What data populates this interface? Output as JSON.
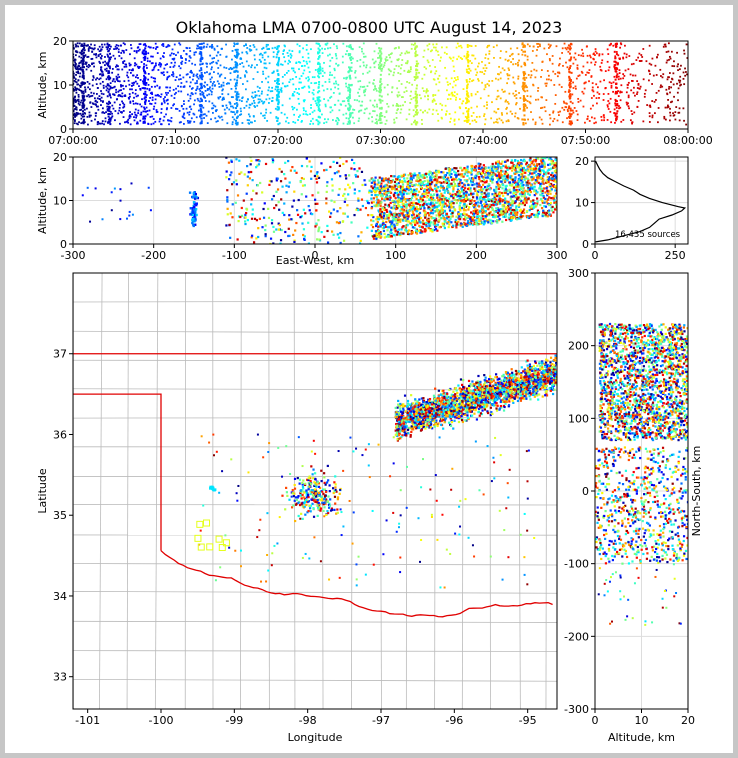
{
  "title": "Oklahoma LMA 0700-0800 UTC August 14, 2023",
  "colors": {
    "oklahoma_border": "#e00000",
    "county_lines": "#bbbbbb",
    "grid": "#dddddd",
    "hist_line": "#000000"
  },
  "chart_data": [
    {
      "id": "time_altitude",
      "type": "scatter",
      "xlabel": "",
      "ylabel": "Altitude, km",
      "x_ticks": [
        "07:00:00",
        "07:10:00",
        "07:20:00",
        "07:30:00",
        "07:40:00",
        "07:50:00",
        "08:00:00"
      ],
      "xlim_minutes": [
        0,
        60
      ],
      "ylim": [
        0,
        20
      ],
      "y_ticks": [
        0,
        10,
        20
      ],
      "colormap": "jet (by time)",
      "activity_columns_minutes": [
        1,
        3.5,
        7,
        12.5,
        16,
        20,
        24,
        27,
        30,
        33.5,
        38.5,
        44,
        48.5,
        53
      ]
    },
    {
      "id": "eastwest_altitude",
      "type": "scatter",
      "xlabel": "East-West, km",
      "ylabel": "Altitude, km",
      "xlim": [
        -300,
        300
      ],
      "x_ticks": [
        -300,
        -200,
        -100,
        0,
        100,
        200,
        300
      ],
      "ylim": [
        0,
        20
      ],
      "y_ticks": [
        0,
        10,
        20
      ]
    },
    {
      "id": "altitude_histogram",
      "type": "line",
      "xlim": [
        0,
        290
      ],
      "x_ticks": [
        0,
        250
      ],
      "ylim": [
        0,
        21
      ],
      "y_ticks": [
        0,
        10,
        20
      ],
      "annotation": "16,435 sources",
      "profile": [
        [
          0.5,
          2
        ],
        [
          1,
          40
        ],
        [
          2,
          90
        ],
        [
          3,
          140
        ],
        [
          4,
          170
        ],
        [
          5,
          185
        ],
        [
          6,
          200
        ],
        [
          7,
          240
        ],
        [
          8,
          270
        ],
        [
          8.7,
          280
        ],
        [
          9,
          260
        ],
        [
          10,
          210
        ],
        [
          11,
          170
        ],
        [
          12,
          140
        ],
        [
          13,
          120
        ],
        [
          14,
          90
        ],
        [
          15,
          65
        ],
        [
          16,
          40
        ],
        [
          17,
          25
        ],
        [
          18,
          15
        ],
        [
          19,
          8
        ],
        [
          20,
          2
        ]
      ]
    },
    {
      "id": "plan_view",
      "type": "scatter",
      "xlabel": "Longitude",
      "ylabel": "Latitude",
      "xlim": [
        -101.2,
        -94.6
      ],
      "x_ticks": [
        -101,
        -100,
        -99,
        -98,
        -97,
        -96,
        -95
      ],
      "ylim": [
        32.6,
        38
      ],
      "y_ticks": [
        33,
        34,
        35,
        36,
        37
      ],
      "main_cluster": {
        "lon_range": [
          -96.8,
          -94.6
        ],
        "lat_range": [
          35.8,
          37.1
        ]
      },
      "secondary_cluster": {
        "lon": -97.9,
        "lat": 35.25
      }
    },
    {
      "id": "altitude_northsouth",
      "type": "scatter",
      "xlabel": "Altitude, km",
      "ylabel": "North-South, km",
      "xlim": [
        0,
        20
      ],
      "x_ticks": [
        0,
        10,
        20
      ],
      "ylim": [
        -300,
        300
      ],
      "y_ticks": [
        -300,
        -200,
        -100,
        0,
        100,
        200,
        300
      ]
    }
  ]
}
